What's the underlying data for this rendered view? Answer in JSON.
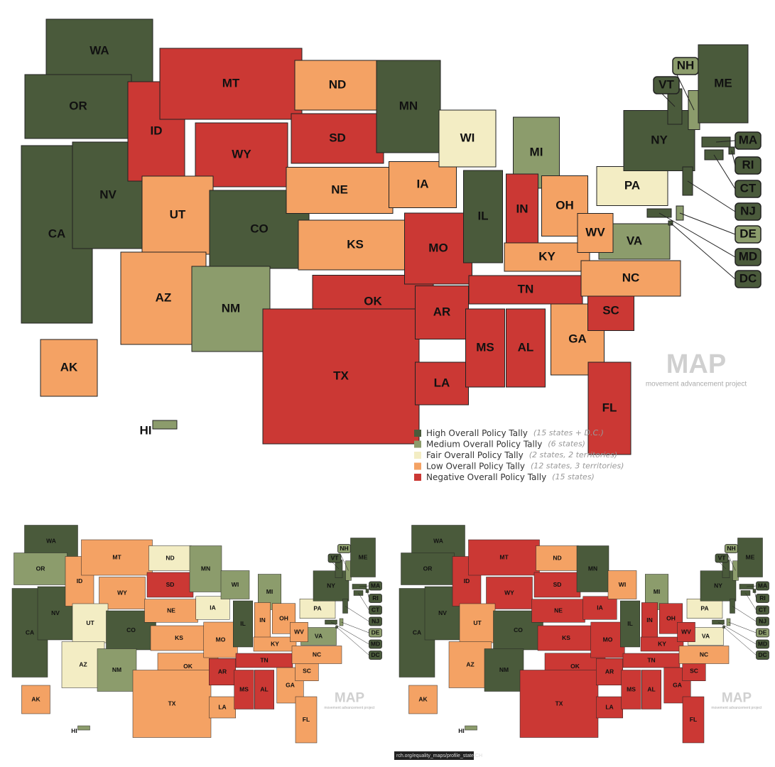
{
  "maps": [
    {
      "labels": [
        "WA",
        "OR",
        "CA",
        "NV",
        "ID",
        "MT",
        "WY",
        "UT",
        "CO",
        "AZ",
        "NM",
        "ND",
        "SD",
        "NE",
        "KS",
        "OK",
        "TX",
        "MN",
        "IA",
        "MO",
        "AR",
        "LA",
        "WI",
        "IL",
        "MI",
        "IN",
        "OH",
        "KY",
        "TN",
        "MS",
        "AL",
        "GA",
        "FL",
        "SC",
        "NC",
        "VA",
        "WV",
        "PA",
        "NY",
        "VT",
        "NH",
        "ME",
        "MA",
        "RI",
        "CT",
        "NJ",
        "DE",
        "MD",
        "DC",
        "AK",
        "HI"
      ],
      "colors": [
        "#4a5a3b",
        "#4a5a3b",
        "#4a5a3b",
        "#4a5a3b",
        "#cb3834",
        "#cb3834",
        "#cb3834",
        "#f4a264",
        "#4a5a3b",
        "#f4a264",
        "#8c9c6c",
        "#f4a264",
        "#cb3834",
        "#f4a264",
        "#f4a264",
        "#cb3834",
        "#cb3834",
        "#4a5a3b",
        "#f4a264",
        "#cb3834",
        "#cb3834",
        "#cb3834",
        "#f3edc4",
        "#4a5a3b",
        "#8c9c6c",
        "#cb3834",
        "#f4a264",
        "#f4a264",
        "#cb3834",
        "#cb3834",
        "#cb3834",
        "#f4a264",
        "#cb3834",
        "#cb3834",
        "#f4a264",
        "#8c9c6c",
        "#f4a264",
        "#f3edc4",
        "#4a5a3b",
        "#4a5a3b",
        "#8c9c6c",
        "#4a5a3b",
        "#4a5a3b",
        "#4a5a3b",
        "#4a5a3b",
        "#4a5a3b",
        "#8c9c6c",
        "#4a5a3b",
        "#4a5a3b",
        "#f4a264",
        "#8c9c6c"
      ]
    },
    {
      "labels": [
        "WA",
        "OR",
        "CA",
        "NV",
        "ID",
        "MT",
        "WY",
        "UT",
        "CO",
        "AZ",
        "NM",
        "ND",
        "SD",
        "NE",
        "KS",
        "OK",
        "TX",
        "MN",
        "IA",
        "MO",
        "AR",
        "LA",
        "WI",
        "IL",
        "MI",
        "IN",
        "OH",
        "KY",
        "TN",
        "MS",
        "AL",
        "GA",
        "FL",
        "SC",
        "NC",
        "VA",
        "WV",
        "PA",
        "NY",
        "VT",
        "NH",
        "ME",
        "MA",
        "RI",
        "CT",
        "NJ",
        "DE",
        "MD",
        "DC",
        "AK",
        "HI"
      ],
      "colors": [
        "#4a5a3b",
        "#8c9c6c",
        "#4a5a3b",
        "#4a5a3b",
        "#f4a264",
        "#f4a264",
        "#f4a264",
        "#f3edc4",
        "#4a5a3b",
        "#f3edc4",
        "#8c9c6c",
        "#f3edc4",
        "#cb3834",
        "#f4a264",
        "#f4a264",
        "#f4a264",
        "#f4a264",
        "#8c9c6c",
        "#f3edc4",
        "#f4a264",
        "#cb3834",
        "#f4a264",
        "#8c9c6c",
        "#4a5a3b",
        "#8c9c6c",
        "#f4a264",
        "#f4a264",
        "#f4a264",
        "#cb3834",
        "#cb3834",
        "#cb3834",
        "#f4a264",
        "#f4a264",
        "#f4a264",
        "#f4a264",
        "#8c9c6c",
        "#f4a264",
        "#f3edc4",
        "#4a5a3b",
        "#4a5a3b",
        "#8c9c6c",
        "#4a5a3b",
        "#4a5a3b",
        "#4a5a3b",
        "#4a5a3b",
        "#4a5a3b",
        "#8c9c6c",
        "#4a5a3b",
        "#4a5a3b",
        "#f4a264",
        "#8c9c6c"
      ]
    },
    {
      "labels": [
        "WA",
        "OR",
        "CA",
        "NV",
        "ID",
        "MT",
        "WY",
        "UT",
        "CO",
        "AZ",
        "NM",
        "ND",
        "SD",
        "NE",
        "KS",
        "OK",
        "TX",
        "MN",
        "IA",
        "MO",
        "AR",
        "LA",
        "WI",
        "IL",
        "MI",
        "IN",
        "OH",
        "KY",
        "TN",
        "MS",
        "AL",
        "GA",
        "FL",
        "SC",
        "NC",
        "VA",
        "WV",
        "PA",
        "NY",
        "VT",
        "NH",
        "ME",
        "MA",
        "RI",
        "CT",
        "NJ",
        "DE",
        "MD",
        "DC",
        "AK",
        "HI"
      ],
      "colors": [
        "#4a5a3b",
        "#4a5a3b",
        "#4a5a3b",
        "#4a5a3b",
        "#cb3834",
        "#cb3834",
        "#cb3834",
        "#f4a264",
        "#4a5a3b",
        "#f4a264",
        "#4a5a3b",
        "#f4a264",
        "#cb3834",
        "#cb3834",
        "#cb3834",
        "#cb3834",
        "#cb3834",
        "#4a5a3b",
        "#cb3834",
        "#cb3834",
        "#cb3834",
        "#cb3834",
        "#f4a264",
        "#4a5a3b",
        "#8c9c6c",
        "#cb3834",
        "#cb3834",
        "#cb3834",
        "#cb3834",
        "#cb3834",
        "#cb3834",
        "#cb3834",
        "#cb3834",
        "#cb3834",
        "#f4a264",
        "#f3edc4",
        "#cb3834",
        "#f3edc4",
        "#4a5a3b",
        "#4a5a3b",
        "#8c9c6c",
        "#4a5a3b",
        "#4a5a3b",
        "#4a5a3b",
        "#4a5a3b",
        "#4a5a3b",
        "#8c9c6c",
        "#4a5a3b",
        "#4a5a3b",
        "#f4a264",
        "#8c9c6c"
      ]
    }
  ],
  "legend": [
    {
      "name": "High Overall Policy Tally",
      "note": "(15 states + D.C.)",
      "color": "#4a5a3b"
    },
    {
      "name": "Medium Overall Policy Tally",
      "note": "(6 states)",
      "color": "#8c9c6c"
    },
    {
      "name": "Fair Overall Policy Tally",
      "note": "(2 states, 2 territories)",
      "color": "#f3edc4"
    },
    {
      "name": "Low Overall Policy Tally",
      "note": "(12 states, 3 territories)",
      "color": "#f4a264"
    },
    {
      "name": "Negative Overall Policy Tally",
      "note": "(15 states)",
      "color": "#cb3834"
    }
  ],
  "logo": {
    "mark": "MAP",
    "tagline": "movement advancement project"
  },
  "url": "rch.org/equality_maps/profile_state/CH"
}
